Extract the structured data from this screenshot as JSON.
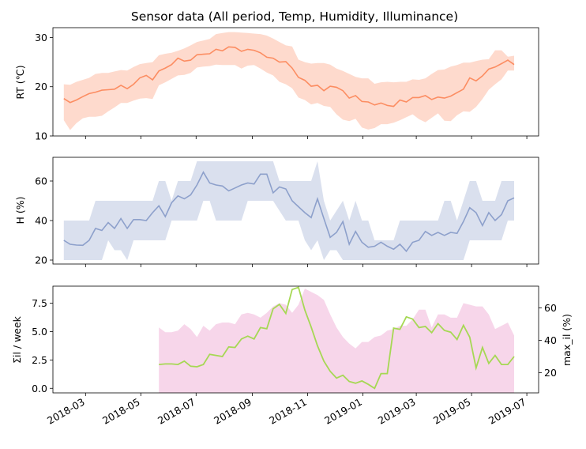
{
  "chart_data": [
    {
      "type": "area",
      "title": "Sensor data (All period, Temp, Humidity, Illuminance)",
      "xlabel": "",
      "ylabel": "RT (℃)",
      "ylim": [
        10,
        32
      ],
      "yticks": [
        "10",
        "20",
        "30"
      ],
      "x_dates": [
        "2018-02-05",
        "2018-02-12",
        "2018-02-19",
        "2018-02-26",
        "2018-03-05",
        "2018-03-12",
        "2018-03-19",
        "2018-03-26",
        "2018-04-02",
        "2018-04-09",
        "2018-04-16",
        "2018-04-23",
        "2018-04-30",
        "2018-05-07",
        "2018-05-14",
        "2018-05-21",
        "2018-05-28",
        "2018-06-04",
        "2018-06-11",
        "2018-06-18",
        "2018-06-25",
        "2018-07-02",
        "2018-07-09",
        "2018-07-16",
        "2018-07-23",
        "2018-07-30",
        "2018-08-06",
        "2018-08-13",
        "2018-08-20",
        "2018-08-27",
        "2018-09-03",
        "2018-09-10",
        "2018-09-17",
        "2018-09-24",
        "2018-10-01",
        "2018-10-08",
        "2018-10-15",
        "2018-10-22",
        "2018-10-29",
        "2018-11-05",
        "2018-11-12",
        "2018-11-19",
        "2018-11-26",
        "2018-12-03",
        "2018-12-10",
        "2018-12-17",
        "2018-12-24",
        "2018-12-31",
        "2019-01-07",
        "2019-01-14",
        "2019-01-21",
        "2019-01-28",
        "2019-02-04",
        "2019-02-11",
        "2019-02-18",
        "2019-02-25",
        "2019-03-04",
        "2019-03-11",
        "2019-03-18",
        "2019-03-25",
        "2019-04-01",
        "2019-04-08",
        "2019-04-15",
        "2019-04-22",
        "2019-04-29",
        "2019-05-06",
        "2019-05-13",
        "2019-05-20",
        "2019-05-27",
        "2019-06-03",
        "2019-06-10",
        "2019-06-17"
      ],
      "series": [
        {
          "color": "#fc8d62",
          "mean": [
            17.6,
            16.8,
            17.3,
            18.0,
            18.6,
            18.9,
            19.3,
            19.4,
            19.5,
            20.3,
            19.6,
            20.5,
            21.8,
            22.3,
            21.4,
            23.2,
            23.8,
            24.5,
            25.8,
            25.2,
            25.4,
            26.5,
            26.6,
            26.7,
            27.6,
            27.3,
            28.1,
            28.0,
            27.2,
            27.6,
            27.4,
            26.9,
            26.0,
            25.8,
            25.0,
            25.1,
            23.8,
            21.9,
            21.3,
            20.1,
            20.3,
            19.2,
            20.1,
            19.9,
            19.2,
            17.7,
            18.2,
            17.0,
            16.9,
            16.3,
            16.7,
            16.2,
            16.0,
            17.3,
            16.9,
            17.8,
            17.8,
            18.2,
            17.4,
            17.9,
            17.7,
            18.1,
            18.8,
            19.5,
            21.8,
            21.2,
            22.2,
            23.6,
            24.0,
            24.7,
            25.4,
            24.5
          ],
          "min": [
            13.2,
            11.2,
            12.6,
            13.6,
            13.9,
            13.9,
            14.1,
            15.0,
            15.8,
            16.7,
            16.7,
            17.2,
            17.6,
            17.7,
            17.5,
            20.3,
            20.9,
            21.6,
            22.3,
            22.4,
            22.8,
            23.9,
            24.1,
            24.2,
            24.5,
            24.4,
            24.4,
            24.4,
            23.7,
            24.3,
            24.4,
            23.7,
            22.9,
            22.3,
            21.0,
            20.5,
            19.7,
            17.8,
            17.3,
            16.4,
            16.7,
            16.1,
            15.9,
            14.4,
            13.3,
            13.0,
            13.5,
            11.7,
            11.3,
            11.6,
            12.4,
            12.4,
            12.7,
            13.2,
            13.8,
            14.4,
            13.4,
            12.8,
            13.7,
            14.6,
            13.1,
            13.0,
            14.2,
            15.0,
            14.9,
            15.9,
            17.5,
            19.4,
            20.5,
            21.5,
            23.3,
            23.3
          ],
          "max": [
            20.5,
            20.4,
            21.0,
            21.4,
            21.8,
            22.6,
            22.8,
            22.8,
            23.1,
            23.4,
            23.3,
            24.0,
            24.6,
            24.8,
            25.0,
            26.4,
            26.7,
            26.9,
            27.3,
            27.8,
            28.4,
            29.1,
            29.4,
            29.7,
            30.7,
            30.9,
            31.1,
            31.1,
            31.0,
            30.9,
            30.8,
            30.7,
            30.4,
            29.8,
            29.1,
            28.4,
            28.2,
            25.5,
            25.0,
            24.7,
            24.8,
            24.8,
            24.5,
            23.7,
            23.2,
            22.6,
            22.0,
            21.7,
            21.7,
            20.6,
            20.9,
            21.0,
            20.9,
            21.0,
            21.0,
            21.5,
            21.4,
            21.7,
            22.6,
            23.4,
            23.5,
            24.1,
            24.4,
            24.9,
            24.9,
            25.2,
            25.5,
            25.6,
            27.4,
            27.4,
            26.1,
            26.3
          ]
        }
      ]
    },
    {
      "type": "area",
      "xlabel": "",
      "ylabel": "H (%)",
      "ylim": [
        18,
        72
      ],
      "yticks": [
        "20",
        "40",
        "60"
      ],
      "series": [
        {
          "color": "#8da0cb",
          "mean": [
            30,
            28,
            27.6,
            27.5,
            30,
            36,
            35,
            39,
            36,
            41,
            36,
            40.5,
            40.5,
            40,
            44,
            47.5,
            42,
            49,
            52.5,
            51,
            53,
            58,
            64.5,
            59,
            58,
            57.5,
            55,
            56.5,
            58,
            59,
            58.5,
            63.5,
            63.5,
            54,
            57,
            56,
            50,
            47,
            44,
            41.5,
            51,
            41,
            31.5,
            34,
            39.5,
            28,
            34.5,
            29,
            26.5,
            27,
            29,
            27,
            25.5,
            28,
            24.5,
            29,
            30,
            34.5,
            32.5,
            34,
            32.5,
            34,
            33.5,
            39.5,
            46.5,
            44,
            37.5,
            44,
            40,
            43,
            50,
            51.5
          ],
          "min": [
            20,
            20,
            20,
            20,
            20,
            20,
            20,
            30,
            25,
            25,
            20,
            30,
            30,
            30,
            30,
            30,
            30,
            40,
            40,
            40,
            40,
            40,
            50,
            50,
            40,
            40,
            40,
            40,
            40,
            50,
            50,
            50,
            50,
            50,
            45,
            40,
            40,
            40,
            30,
            25,
            30,
            20,
            25,
            25,
            20,
            20,
            20,
            20,
            20,
            20,
            20,
            20,
            20,
            20,
            20,
            20,
            20,
            20,
            20,
            20,
            20,
            20,
            20,
            20,
            30,
            30,
            30,
            30,
            30,
            30,
            40,
            40
          ],
          "max": [
            40,
            40,
            40,
            40,
            40,
            50,
            50,
            50,
            50,
            50,
            50,
            50,
            50,
            50,
            50,
            60,
            60,
            50,
            60,
            60,
            60,
            70,
            70,
            70,
            70,
            70,
            70,
            70,
            70,
            70,
            70,
            70,
            70,
            70,
            60,
            60,
            60,
            60,
            60,
            60,
            70,
            50,
            40,
            45,
            50,
            40,
            50,
            40,
            40,
            30,
            30,
            30,
            30,
            40,
            40,
            40,
            40,
            40,
            40,
            40,
            50,
            50,
            40,
            50,
            60,
            60,
            50,
            50,
            50,
            60,
            60,
            60
          ]
        }
      ]
    },
    {
      "type": "line",
      "xlabel": "",
      "ylabel": "Σil / week",
      "ylabel_right": "max_il (%)",
      "ylim": [
        -0.4,
        9.0
      ],
      "yticks": [
        "0.0",
        "2.5",
        "5.0",
        "7.5"
      ],
      "ylim_right": [
        7.5,
        73.5
      ],
      "yticks_right": [
        "20",
        "40",
        "60"
      ],
      "xticks": [
        "2018-03",
        "2018-05",
        "2018-07",
        "2018-09",
        "2018-11",
        "2019-01",
        "2019-03",
        "2019-05",
        "2019-07"
      ],
      "x_dates": [
        "2018-05-21",
        "2018-05-28",
        "2018-06-04",
        "2018-06-11",
        "2018-06-18",
        "2018-06-25",
        "2018-07-02",
        "2018-07-09",
        "2018-07-16",
        "2018-07-23",
        "2018-07-30",
        "2018-08-06",
        "2018-08-13",
        "2018-08-20",
        "2018-08-27",
        "2018-09-03",
        "2018-09-10",
        "2018-09-17",
        "2018-09-24",
        "2018-10-01",
        "2018-10-08",
        "2018-10-15",
        "2018-10-22",
        "2018-10-29",
        "2018-11-05",
        "2018-11-12",
        "2018-11-19",
        "2018-11-26",
        "2018-12-03",
        "2018-12-10",
        "2018-12-17",
        "2018-12-24",
        "2018-12-31",
        "2019-01-07",
        "2019-01-14",
        "2019-01-21",
        "2019-01-28",
        "2019-02-04",
        "2019-02-11",
        "2019-02-18",
        "2019-02-25",
        "2019-03-04",
        "2019-03-11",
        "2019-03-18",
        "2019-03-25",
        "2019-04-01",
        "2019-04-08",
        "2019-04-15",
        "2019-04-22",
        "2019-04-29",
        "2019-05-06",
        "2019-05-13",
        "2019-05-20",
        "2019-05-27",
        "2019-06-03",
        "2019-06-10",
        "2019-06-17"
      ],
      "series": [
        {
          "color": "#a6d854",
          "axis": "left",
          "values": [
            2.1,
            2.15,
            2.15,
            2.1,
            2.4,
            1.95,
            1.9,
            2.1,
            3.0,
            2.9,
            2.8,
            3.65,
            3.6,
            4.35,
            4.6,
            4.35,
            5.35,
            5.25,
            7.0,
            7.4,
            6.6,
            8.7,
            8.9,
            6.9,
            5.4,
            3.75,
            2.4,
            1.5,
            0.9,
            1.15,
            0.6,
            0.45,
            0.65,
            0.35,
            0.0,
            1.3,
            1.3,
            5.3,
            5.2,
            6.3,
            6.1,
            5.35,
            5.45,
            4.9,
            5.7,
            5.1,
            4.95,
            4.3,
            5.55,
            4.5,
            1.8,
            3.6,
            2.2,
            2.9,
            2.1,
            2.1,
            2.8
          ]
        },
        {
          "color": "#e78ac3",
          "axis": "right",
          "values": [
            48,
            45,
            45,
            46,
            50,
            47,
            42,
            49,
            46,
            50,
            51,
            51,
            50,
            56,
            57,
            56,
            54,
            57,
            61,
            63,
            62,
            57,
            62,
            72,
            70,
            68,
            65,
            56,
            48,
            42,
            38,
            35,
            39,
            39,
            42,
            43,
            46,
            47,
            49,
            49,
            53,
            59,
            59,
            48,
            56,
            56,
            54,
            54,
            63,
            62,
            61,
            61,
            56,
            47,
            49,
            51,
            43
          ]
        }
      ]
    }
  ]
}
